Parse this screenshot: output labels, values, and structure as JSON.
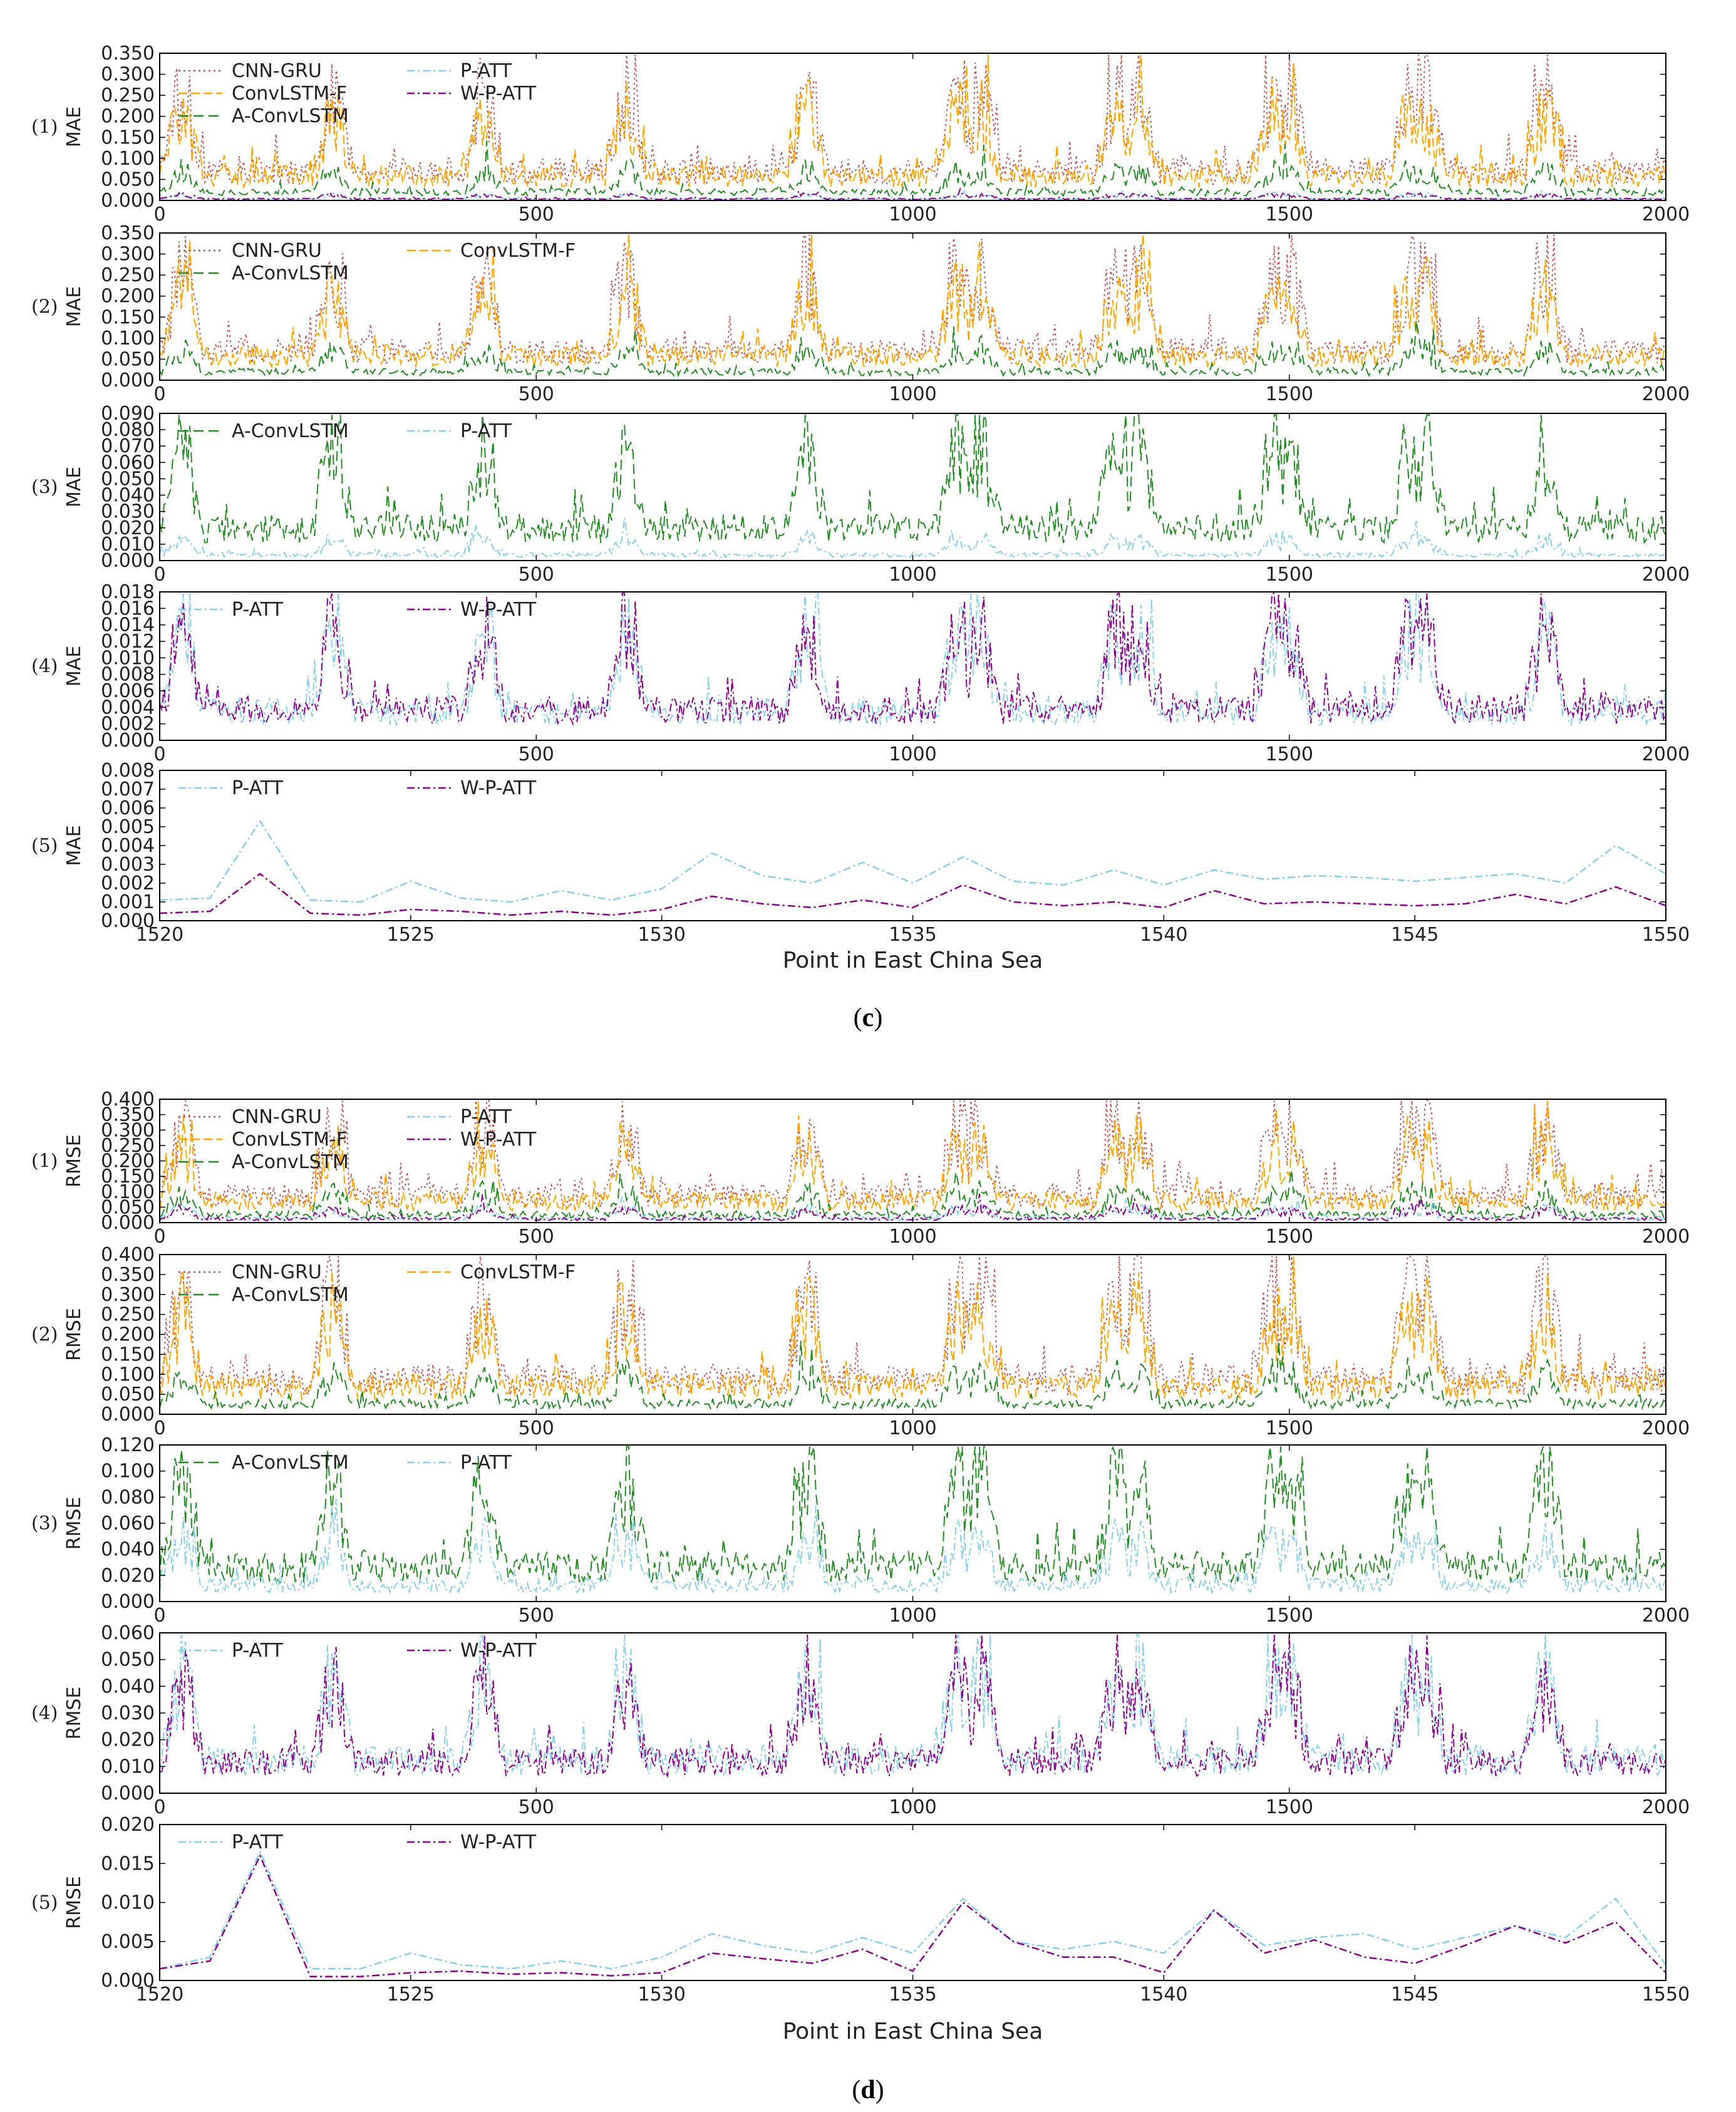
{
  "series_styles": {
    "CNN-GRU": {
      "color": "#c0504d",
      "dash": "3,5"
    },
    "ConvLSTM-F": {
      "color": "#ffa500",
      "dash": "14,6"
    },
    "A-ConvLSTM": {
      "color": "#228b22",
      "dash": "16,8"
    },
    "P-ATT": {
      "color": "#87ceeb",
      "dash": "12,5,3,5"
    },
    "W-P-ATT": {
      "color": "#8b008b",
      "dash": "12,5,3,5"
    }
  },
  "figures": [
    {
      "caption_open": "(",
      "caption_letter": "c",
      "caption_close": ")",
      "xlabel": "Point in East China Sea",
      "panels": [
        {
          "row_label": "(1)",
          "ylabel": "MAE",
          "metric": "MAE",
          "xrange": [
            0,
            2000
          ],
          "yrange": [
            0,
            0.35
          ],
          "xticks": [
            "0",
            "500",
            "1000",
            "1500",
            "2000"
          ],
          "yticks": [
            "0.000",
            "0.050",
            "0.100",
            "0.150",
            "0.200",
            "0.250",
            "0.300",
            "0.350"
          ],
          "series": [
            "CNN-GRU",
            "ConvLSTM-F",
            "A-ConvLSTM",
            "P-ATT",
            "W-P-ATT"
          ],
          "legend_cols": 2
        },
        {
          "row_label": "(2)",
          "ylabel": "MAE",
          "metric": "MAE",
          "xrange": [
            0,
            2000
          ],
          "yrange": [
            0,
            0.35
          ],
          "xticks": [
            "0",
            "500",
            "1000",
            "1500",
            "2000"
          ],
          "yticks": [
            "0.000",
            "0.050",
            "0.100",
            "0.150",
            "0.200",
            "0.250",
            "0.300",
            "0.350"
          ],
          "series": [
            "CNN-GRU",
            "ConvLSTM-F",
            "A-ConvLSTM"
          ],
          "legend_cols": 2
        },
        {
          "row_label": "(3)",
          "ylabel": "MAE",
          "metric": "MAE",
          "xrange": [
            0,
            2000
          ],
          "yrange": [
            0,
            0.09
          ],
          "xticks": [
            "0",
            "500",
            "1000",
            "1500",
            "2000"
          ],
          "yticks": [
            "0.000",
            "0.010",
            "0.020",
            "0.030",
            "0.040",
            "0.050",
            "0.060",
            "0.070",
            "0.080",
            "0.090"
          ],
          "series": [
            "A-ConvLSTM",
            "P-ATT"
          ],
          "legend_cols": 2
        },
        {
          "row_label": "(4)",
          "ylabel": "MAE",
          "metric": "MAE",
          "xrange": [
            0,
            2000
          ],
          "yrange": [
            0,
            0.018
          ],
          "xticks": [
            "0",
            "500",
            "1000",
            "1500",
            "2000"
          ],
          "yticks": [
            "0.000",
            "0.002",
            "0.004",
            "0.006",
            "0.008",
            "0.010",
            "0.012",
            "0.014",
            "0.016",
            "0.018"
          ],
          "series": [
            "P-ATT",
            "W-P-ATT"
          ],
          "legend_cols": 2
        },
        {
          "row_label": "(5)",
          "ylabel": "MAE",
          "metric": "MAE",
          "xrange": [
            1520,
            1550
          ],
          "yrange": [
            0,
            0.008
          ],
          "xticks": [
            "1520",
            "1525",
            "1530",
            "1535",
            "1540",
            "1545",
            "1550"
          ],
          "yticks": [
            "0.000",
            "0.001",
            "0.002",
            "0.003",
            "0.004",
            "0.005",
            "0.006",
            "0.007",
            "0.008"
          ],
          "series": [
            "P-ATT",
            "W-P-ATT"
          ],
          "legend_cols": 2
        }
      ]
    },
    {
      "caption_open": "(",
      "caption_letter": "d",
      "caption_close": ")",
      "xlabel": "Point in East China Sea",
      "panels": [
        {
          "row_label": "(1)",
          "ylabel": "RMSE",
          "metric": "RMSE",
          "xrange": [
            0,
            2000
          ],
          "yrange": [
            0,
            0.4
          ],
          "xticks": [
            "0",
            "500",
            "1000",
            "1500",
            "2000"
          ],
          "yticks": [
            "0.000",
            "0.050",
            "0.100",
            "0.150",
            "0.200",
            "0.250",
            "0.300",
            "0.350",
            "0.400"
          ],
          "series": [
            "CNN-GRU",
            "ConvLSTM-F",
            "A-ConvLSTM",
            "P-ATT",
            "W-P-ATT"
          ],
          "legend_cols": 2
        },
        {
          "row_label": "(2)",
          "ylabel": "RMSE",
          "metric": "RMSE",
          "xrange": [
            0,
            2000
          ],
          "yrange": [
            0,
            0.4
          ],
          "xticks": [
            "0",
            "500",
            "1000",
            "1500",
            "2000"
          ],
          "yticks": [
            "0.000",
            "0.050",
            "0.100",
            "0.150",
            "0.200",
            "0.250",
            "0.300",
            "0.350",
            "0.400"
          ],
          "series": [
            "CNN-GRU",
            "ConvLSTM-F",
            "A-ConvLSTM"
          ],
          "legend_cols": 2
        },
        {
          "row_label": "(3)",
          "ylabel": "RMSE",
          "metric": "RMSE",
          "xrange": [
            0,
            2000
          ],
          "yrange": [
            0,
            0.12
          ],
          "xticks": [
            "0",
            "500",
            "1000",
            "1500",
            "2000"
          ],
          "yticks": [
            "0.000",
            "0.020",
            "0.040",
            "0.060",
            "0.080",
            "0.100",
            "0.120"
          ],
          "series": [
            "A-ConvLSTM",
            "P-ATT"
          ],
          "legend_cols": 2
        },
        {
          "row_label": "(4)",
          "ylabel": "RMSE",
          "metric": "RMSE",
          "xrange": [
            0,
            2000
          ],
          "yrange": [
            0,
            0.06
          ],
          "xticks": [
            "0",
            "500",
            "1000",
            "1500",
            "2000"
          ],
          "yticks": [
            "0.000",
            "0.010",
            "0.020",
            "0.030",
            "0.040",
            "0.050",
            "0.060"
          ],
          "series": [
            "P-ATT",
            "W-P-ATT"
          ],
          "legend_cols": 2
        },
        {
          "row_label": "(5)",
          "ylabel": "RMSE",
          "metric": "RMSE",
          "xrange": [
            1520,
            1550
          ],
          "yrange": [
            0,
            0.02
          ],
          "xticks": [
            "1520",
            "1525",
            "1530",
            "1535",
            "1540",
            "1545",
            "1550"
          ],
          "yticks": [
            "0.000",
            "0.005",
            "0.010",
            "0.015",
            "0.020"
          ],
          "series": [
            "P-ATT",
            "W-P-ATT"
          ],
          "legend_cols": 2
        }
      ]
    }
  ],
  "chart_data": [
    {
      "type": "line",
      "title": "(c)",
      "xlabel": "Point in East China Sea",
      "ylabel": "MAE",
      "description": "Per-point MAE over 2000 East China Sea points for five models (panels 1-4) and a zoom on points 1520-1550 (panel 5)",
      "peaks_x": [
        30,
        230,
        430,
        620,
        860,
        1060,
        1090,
        1270,
        1300,
        1480,
        1500,
        1660,
        1680,
        1840
      ],
      "approx_peak_values": {
        "CNN-GRU": 0.3,
        "ConvLSTM-F": 0.25,
        "A-ConvLSTM": 0.085,
        "P-ATT": 0.015,
        "W-P-ATT": 0.016
      },
      "zoom_x": [
        1520,
        1521,
        1522,
        1523,
        1524,
        1525,
        1526,
        1527,
        1528,
        1529,
        1530,
        1531,
        1532,
        1533,
        1534,
        1535,
        1536,
        1537,
        1538,
        1539,
        1540,
        1541,
        1542,
        1543,
        1544,
        1545,
        1546,
        1547,
        1548,
        1549,
        1550
      ],
      "zoom_series": [
        {
          "name": "P-ATT",
          "values": [
            0.0011,
            0.0012,
            0.0053,
            0.0011,
            0.001,
            0.0021,
            0.0012,
            0.001,
            0.0016,
            0.0011,
            0.0017,
            0.0036,
            0.0024,
            0.002,
            0.0031,
            0.002,
            0.0034,
            0.0021,
            0.0019,
            0.0027,
            0.0019,
            0.0027,
            0.0022,
            0.0024,
            0.0023,
            0.0021,
            0.0023,
            0.0025,
            0.002,
            0.004,
            0.0025
          ]
        },
        {
          "name": "W-P-ATT",
          "values": [
            0.0004,
            0.0005,
            0.0025,
            0.0004,
            0.0003,
            0.0006,
            0.0005,
            0.0003,
            0.0005,
            0.0003,
            0.0006,
            0.0013,
            0.0009,
            0.0007,
            0.0011,
            0.0007,
            0.0019,
            0.001,
            0.0008,
            0.001,
            0.0007,
            0.0016,
            0.0009,
            0.001,
            0.0009,
            0.0008,
            0.0009,
            0.0014,
            0.0009,
            0.0018,
            0.0008
          ]
        }
      ]
    },
    {
      "type": "line",
      "title": "(d)",
      "xlabel": "Point in East China Sea",
      "ylabel": "RMSE",
      "description": "Per-point RMSE over 2000 East China Sea points for five models (panels 1-4) and a zoom on points 1520-1550 (panel 5)",
      "peaks_x": [
        30,
        230,
        430,
        620,
        860,
        1060,
        1090,
        1270,
        1300,
        1480,
        1500,
        1660,
        1680,
        1840
      ],
      "approx_peak_values": {
        "CNN-GRU": 0.38,
        "ConvLSTM-F": 0.3,
        "A-ConvLSTM": 0.115,
        "P-ATT": 0.054,
        "W-P-ATT": 0.051
      },
      "zoom_x": [
        1520,
        1521,
        1522,
        1523,
        1524,
        1525,
        1526,
        1527,
        1528,
        1529,
        1530,
        1531,
        1532,
        1533,
        1534,
        1535,
        1536,
        1537,
        1538,
        1539,
        1540,
        1541,
        1542,
        1543,
        1544,
        1545,
        1546,
        1547,
        1548,
        1549,
        1550
      ],
      "zoom_series": [
        {
          "name": "P-ATT",
          "values": [
            0.0015,
            0.003,
            0.0165,
            0.0015,
            0.0015,
            0.0035,
            0.002,
            0.0015,
            0.0025,
            0.0015,
            0.003,
            0.006,
            0.0045,
            0.0035,
            0.0055,
            0.0035,
            0.0105,
            0.005,
            0.004,
            0.005,
            0.0035,
            0.009,
            0.0045,
            0.0055,
            0.006,
            0.004,
            0.0055,
            0.007,
            0.0055,
            0.0105,
            0.002
          ]
        },
        {
          "name": "W-P-ATT",
          "values": [
            0.0015,
            0.0025,
            0.016,
            0.0005,
            0.0005,
            0.001,
            0.0012,
            0.0008,
            0.001,
            0.0006,
            0.001,
            0.0035,
            0.0028,
            0.0022,
            0.004,
            0.0012,
            0.01,
            0.005,
            0.003,
            0.003,
            0.001,
            0.009,
            0.0035,
            0.0052,
            0.003,
            0.0022,
            0.0045,
            0.007,
            0.0048,
            0.0075,
            0.001
          ]
        }
      ]
    }
  ]
}
